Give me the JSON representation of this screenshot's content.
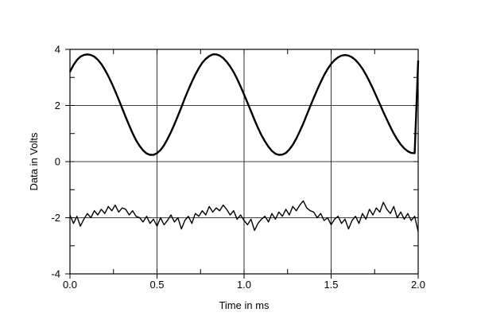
{
  "chart_data": {
    "type": "line",
    "title": "",
    "xlabel": "Time in ms",
    "ylabel": "Data in Volts",
    "xlim": [
      0.0,
      2.0
    ],
    "ylim": [
      -4,
      4
    ],
    "grid": true,
    "xticks": [
      "0.0",
      "0.5",
      "1.0",
      "1.5",
      "2.0"
    ],
    "yticks": [
      "-4",
      "-2",
      "0",
      "2",
      "4"
    ],
    "series": [
      {
        "color": "#000000",
        "x": [
          0.0,
          0.02,
          0.04,
          0.06,
          0.08,
          0.1,
          0.12,
          0.14,
          0.16,
          0.18,
          0.2,
          0.22,
          0.24,
          0.26,
          0.28,
          0.3,
          0.32,
          0.34,
          0.36,
          0.38,
          0.4,
          0.42,
          0.44,
          0.46,
          0.48,
          0.5,
          0.52,
          0.54,
          0.56,
          0.58,
          0.6,
          0.62,
          0.64,
          0.66,
          0.68,
          0.7,
          0.72,
          0.74,
          0.76,
          0.78,
          0.8,
          0.82,
          0.84,
          0.86,
          0.88,
          0.9,
          0.92,
          0.94,
          0.96,
          0.98,
          1.0,
          1.02,
          1.04,
          1.06,
          1.08,
          1.1,
          1.12,
          1.14,
          1.16,
          1.18,
          1.2,
          1.22,
          1.24,
          1.26,
          1.28,
          1.3,
          1.32,
          1.34,
          1.36,
          1.38,
          1.4,
          1.42,
          1.44,
          1.46,
          1.48,
          1.5,
          1.52,
          1.54,
          1.56,
          1.58,
          1.6,
          1.62,
          1.64,
          1.66,
          1.68,
          1.7,
          1.72,
          1.74,
          1.76,
          1.78,
          1.8,
          1.82,
          1.84,
          1.86,
          1.88,
          1.9,
          1.92,
          1.94,
          1.96,
          1.98,
          2.0
        ],
        "values": [
          3.2,
          3.44,
          3.62,
          3.74,
          3.8,
          3.82,
          3.8,
          3.74,
          3.63,
          3.48,
          3.28,
          3.05,
          2.79,
          2.51,
          2.21,
          1.9,
          1.59,
          1.29,
          1.01,
          0.76,
          0.56,
          0.4,
          0.29,
          0.24,
          0.24,
          0.3,
          0.41,
          0.58,
          0.8,
          1.05,
          1.33,
          1.63,
          1.94,
          2.26,
          2.56,
          2.84,
          3.1,
          3.33,
          3.52,
          3.66,
          3.76,
          3.82,
          3.82,
          3.78,
          3.69,
          3.56,
          3.39,
          3.19,
          2.95,
          2.68,
          2.39,
          2.09,
          1.79,
          1.49,
          1.2,
          0.94,
          0.72,
          0.53,
          0.38,
          0.28,
          0.24,
          0.25,
          0.31,
          0.43,
          0.6,
          0.82,
          1.08,
          1.36,
          1.66,
          1.97,
          2.27,
          2.56,
          2.83,
          3.08,
          3.3,
          3.48,
          3.62,
          3.72,
          3.78,
          3.8,
          3.78,
          3.72,
          3.62,
          3.48,
          3.31,
          3.1,
          2.86,
          2.6,
          2.33,
          2.05,
          1.77,
          1.5,
          1.24,
          1.0,
          0.79,
          0.61,
          0.47,
          0.37,
          0.31,
          0.3,
          3.6
        ]
      },
      {
        "color": "#000000",
        "x": [
          0.0,
          0.02,
          0.04,
          0.06,
          0.08,
          0.1,
          0.12,
          0.14,
          0.16,
          0.18,
          0.2,
          0.22,
          0.24,
          0.26,
          0.28,
          0.3,
          0.32,
          0.34,
          0.36,
          0.38,
          0.4,
          0.42,
          0.44,
          0.46,
          0.48,
          0.5,
          0.52,
          0.54,
          0.56,
          0.58,
          0.6,
          0.62,
          0.64,
          0.66,
          0.68,
          0.7,
          0.72,
          0.74,
          0.76,
          0.78,
          0.8,
          0.82,
          0.84,
          0.86,
          0.88,
          0.9,
          0.92,
          0.94,
          0.96,
          0.98,
          1.0,
          1.02,
          1.04,
          1.06,
          1.08,
          1.1,
          1.12,
          1.14,
          1.16,
          1.18,
          1.2,
          1.22,
          1.24,
          1.26,
          1.28,
          1.3,
          1.32,
          1.34,
          1.36,
          1.38,
          1.4,
          1.42,
          1.44,
          1.46,
          1.48,
          1.5,
          1.52,
          1.54,
          1.56,
          1.58,
          1.6,
          1.62,
          1.64,
          1.66,
          1.68,
          1.7,
          1.72,
          1.74,
          1.76,
          1.78,
          1.8,
          1.82,
          1.84,
          1.86,
          1.88,
          1.9,
          1.92,
          1.94,
          1.96,
          1.98,
          2.0
        ],
        "values": [
          -1.9,
          -2.2,
          -1.95,
          -2.3,
          -2.05,
          -1.85,
          -2.0,
          -1.75,
          -1.9,
          -1.7,
          -1.85,
          -1.6,
          -1.75,
          -1.55,
          -1.8,
          -1.65,
          -1.7,
          -1.9,
          -1.75,
          -1.95,
          -2.0,
          -2.15,
          -1.95,
          -2.2,
          -2.05,
          -2.3,
          -2.0,
          -2.25,
          -2.1,
          -1.9,
          -2.15,
          -2.0,
          -2.4,
          -2.1,
          -1.95,
          -2.2,
          -1.85,
          -1.95,
          -1.75,
          -1.9,
          -1.6,
          -1.8,
          -1.65,
          -1.75,
          -1.55,
          -1.7,
          -1.9,
          -1.75,
          -2.05,
          -1.9,
          -2.1,
          -2.25,
          -2.05,
          -2.45,
          -2.2,
          -2.05,
          -1.95,
          -2.15,
          -1.85,
          -2.05,
          -1.8,
          -1.95,
          -1.7,
          -1.9,
          -1.6,
          -1.75,
          -1.55,
          -1.4,
          -1.65,
          -1.75,
          -1.8,
          -2.0,
          -1.85,
          -2.1,
          -2.0,
          -2.25,
          -2.05,
          -1.95,
          -2.2,
          -2.05,
          -2.4,
          -2.1,
          -1.95,
          -2.2,
          -1.85,
          -2.05,
          -1.7,
          -1.9,
          -1.65,
          -1.8,
          -1.45,
          -1.7,
          -1.85,
          -1.6,
          -2.0,
          -1.8,
          -2.05,
          -1.85,
          -2.1,
          -1.95,
          -2.5
        ]
      }
    ]
  }
}
